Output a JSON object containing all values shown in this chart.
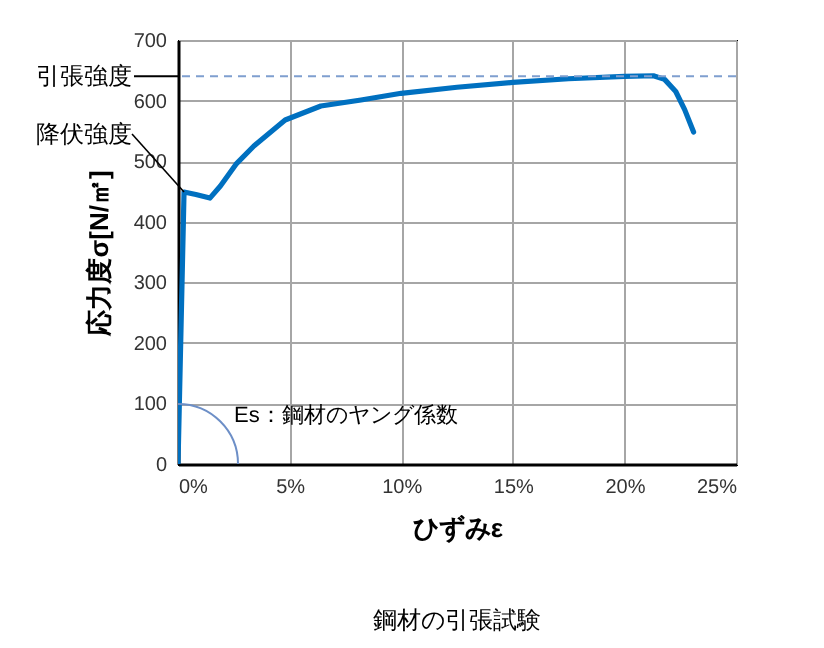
{
  "chart_data": {
    "type": "line",
    "title": "鋼材の引張試験",
    "xlabel": "ひずみε",
    "ylabel": "応力度σ[N/㎡]",
    "x": [
      0,
      0.27,
      0.8,
      1.43,
      1.9,
      2.6,
      3.4,
      4.8,
      6.4,
      8.2,
      10,
      12.5,
      15,
      17.5,
      20,
      21.3,
      21.8,
      22.3,
      22.7,
      23.1
    ],
    "series": [
      {
        "color": "#0070c0",
        "values": [
          0,
          449,
          445,
          439,
          459,
          495,
          525,
          568,
          591,
          601,
          612,
          622,
          630,
          636,
          640,
          641,
          635,
          615,
          585,
          548
        ]
      }
    ],
    "xlim": [
      0,
      25
    ],
    "xticks": [
      {
        "value": 0,
        "label": "0%"
      },
      {
        "value": 5,
        "label": "5%"
      },
      {
        "value": 10,
        "label": "10%"
      },
      {
        "value": 15,
        "label": "15%"
      },
      {
        "value": 20,
        "label": "20%"
      },
      {
        "value": 25,
        "label": "25%"
      }
    ],
    "ylim": [
      0,
      700
    ],
    "yticks": [
      0,
      100,
      200,
      300,
      400,
      500,
      600,
      700
    ],
    "grid": true,
    "marker": "none",
    "line_style": "solid",
    "ref_lines": [
      {
        "axis": "y",
        "value": 640,
        "label": "引張強度",
        "color": "#7f9fcf",
        "line_style": "dashed"
      }
    ],
    "annotations": [
      {
        "text": "降伏強度",
        "x": 0.27,
        "y": 449
      },
      "Es：鋼材のヤング係数"
    ]
  }
}
